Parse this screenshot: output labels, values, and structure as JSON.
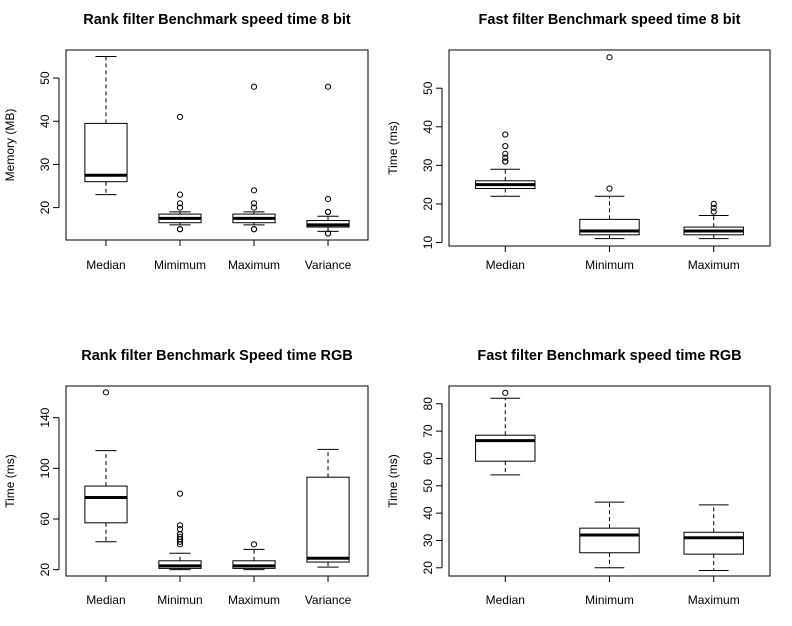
{
  "chart_data": [
    {
      "type": "box",
      "title": "Rank filter Benchmark speed time 8 bit",
      "xlabel": "",
      "ylabel": "Memory (MB)",
      "ylim": [
        12.5,
        56.5
      ],
      "yticks": [
        20,
        30,
        40,
        50
      ],
      "categories": [
        "Median",
        "Mimimum",
        "Maximum",
        "Variance"
      ],
      "boxes": [
        {
          "min": 23,
          "q1": 26,
          "median": 27.5,
          "q3": 39.5,
          "max": 55,
          "outliers": []
        },
        {
          "min": 16,
          "q1": 16.5,
          "median": 17.5,
          "q3": 18.5,
          "max": 19,
          "outliers": [
            41,
            23,
            21,
            20,
            15,
            15
          ]
        },
        {
          "min": 16,
          "q1": 16.5,
          "median": 17.5,
          "q3": 18.5,
          "max": 19,
          "outliers": [
            48,
            24,
            21,
            20,
            15,
            15
          ]
        },
        {
          "min": 14.5,
          "q1": 15.5,
          "median": 16,
          "q3": 17,
          "max": 18,
          "outliers": [
            48,
            22,
            19,
            19,
            14,
            14
          ]
        }
      ]
    },
    {
      "type": "box",
      "title": "Fast filter Benchmark speed time 8 bit",
      "xlabel": "",
      "ylabel": "Time (ms)",
      "ylim": [
        9.1,
        59.9
      ],
      "yticks": [
        10,
        20,
        30,
        40,
        50
      ],
      "categories": [
        "Median",
        "Minimum",
        "Maximum"
      ],
      "boxes": [
        {
          "min": 22,
          "q1": 24,
          "median": 25,
          "q3": 26,
          "max": 29,
          "outliers": [
            38,
            35,
            33,
            32,
            31,
            31
          ]
        },
        {
          "min": 11,
          "q1": 12,
          "median": 13,
          "q3": 16,
          "max": 22,
          "outliers": [
            58,
            24
          ]
        },
        {
          "min": 11,
          "q1": 12,
          "median": 13,
          "q3": 14,
          "max": 17,
          "outliers": [
            20,
            19,
            18
          ]
        }
      ]
    },
    {
      "type": "box",
      "title": "Rank filter Benchmark Speed time RGB",
      "xlabel": "",
      "ylabel": "Time (ms)",
      "ylim": [
        15,
        165
      ],
      "yticks": [
        20,
        60,
        100,
        140
      ],
      "categories": [
        "Median",
        "Minimun",
        "Maximum",
        "Variance"
      ],
      "boxes": [
        {
          "min": 42,
          "q1": 57,
          "median": 77,
          "q3": 86,
          "max": 114,
          "outliers": [
            160
          ]
        },
        {
          "min": 20,
          "q1": 21,
          "median": 23,
          "q3": 27,
          "max": 33,
          "outliers": [
            80,
            55,
            52,
            48,
            46,
            44,
            42,
            40
          ]
        },
        {
          "min": 20,
          "q1": 21,
          "median": 23,
          "q3": 27,
          "max": 36,
          "outliers": [
            40
          ]
        },
        {
          "min": 22,
          "q1": 26,
          "median": 29,
          "q3": 93,
          "max": 115,
          "outliers": []
        }
      ]
    },
    {
      "type": "box",
      "title": "Fast filter Benchmark speed time RGB",
      "xlabel": "",
      "ylabel": "Time (ms)",
      "ylim": [
        17,
        86.5
      ],
      "yticks": [
        20,
        30,
        40,
        50,
        60,
        70,
        80
      ],
      "categories": [
        "Median",
        "Minimum",
        "Maximum"
      ],
      "boxes": [
        {
          "min": 54,
          "q1": 59,
          "median": 66.5,
          "q3": 68.5,
          "max": 82,
          "outliers": [
            84
          ]
        },
        {
          "min": 20,
          "q1": 25.5,
          "median": 32,
          "q3": 34.5,
          "max": 44,
          "outliers": []
        },
        {
          "min": 19,
          "q1": 25,
          "median": 31,
          "q3": 33,
          "max": 43,
          "outliers": []
        }
      ]
    }
  ]
}
